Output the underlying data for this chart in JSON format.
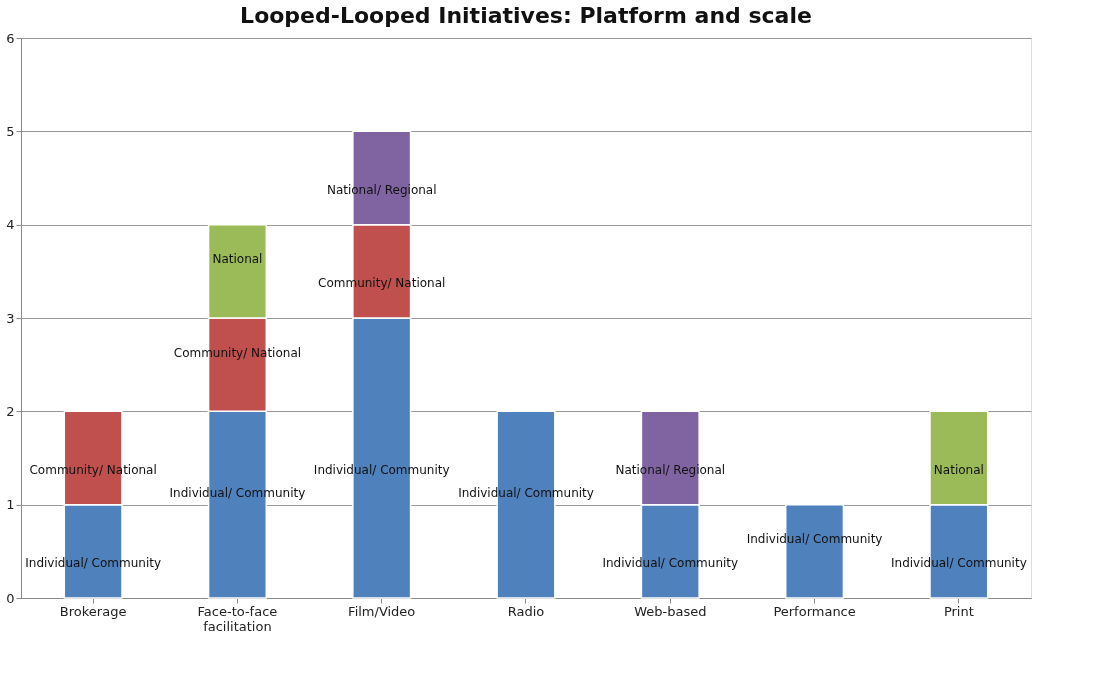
{
  "chart_data": {
    "type": "bar",
    "title": "Looped-Looped Initiatives: Platform and scale",
    "categories": [
      "Brokerage",
      "Face-to-face facilitation",
      "Film/Video",
      "Radio",
      "Web-based",
      "Performance",
      "Print"
    ],
    "stacked": true,
    "series": [
      {
        "name": "Individual/ Community",
        "color": "#4f81bd",
        "values": [
          1,
          2,
          3,
          2,
          1,
          1,
          1
        ]
      },
      {
        "name": "Community/ National",
        "color": "#c0504d",
        "values": [
          1,
          1,
          1,
          null,
          null,
          null,
          null
        ]
      },
      {
        "name": "National",
        "color": "#9bbb59",
        "values": [
          null,
          1,
          null,
          null,
          null,
          null,
          1
        ]
      },
      {
        "name": "National/ Regional",
        "color": "#8064a2",
        "values": [
          null,
          null,
          1,
          null,
          1,
          null,
          null
        ]
      }
    ],
    "ylim": [
      0,
      6
    ],
    "yticks": [
      0,
      1,
      2,
      3,
      4,
      5,
      6
    ],
    "grid": "y",
    "legend": false
  }
}
